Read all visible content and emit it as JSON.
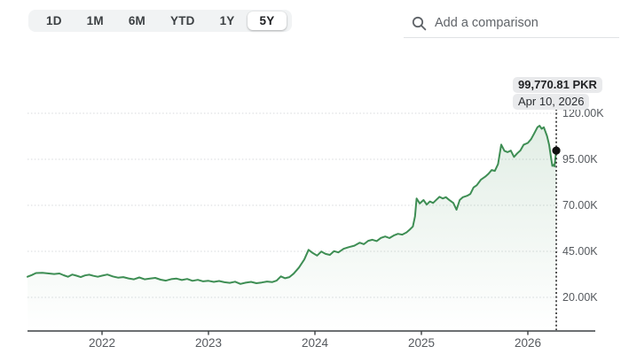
{
  "toolbar": {
    "ranges": [
      "1D",
      "1M",
      "6M",
      "YTD",
      "1Y",
      "5Y"
    ],
    "selected": "5Y"
  },
  "comparison": {
    "placeholder": "Add a comparison"
  },
  "tooltip": {
    "value": "99,770.81 PKR",
    "date": "Apr 10, 2026"
  },
  "chart_data": {
    "type": "line",
    "title": "",
    "xlabel": "",
    "ylabel": "",
    "unit": "PKR",
    "value_scale": "thousands",
    "selected_range": "5Y",
    "grid": "dotted-horizontal",
    "line_color": "#3e8e54",
    "y_ticks": [
      {
        "label": "120.00K",
        "value": 120
      },
      {
        "label": "95.00K",
        "value": 95
      },
      {
        "label": "70.00K",
        "value": 70
      },
      {
        "label": "45.00K",
        "value": 45
      },
      {
        "label": "20.00K",
        "value": 20
      }
    ],
    "x_ticks": [
      {
        "label": "2022",
        "value": 2022
      },
      {
        "label": "2023",
        "value": 2023
      },
      {
        "label": "2024",
        "value": 2024
      },
      {
        "label": "2025",
        "value": 2025
      },
      {
        "label": "2026",
        "value": 2026
      }
    ],
    "x_range": [
      2021.3,
      2026.267
    ],
    "last_point": {
      "t": 2026.267,
      "value": 99.77081,
      "label": "99,770.81 PKR",
      "date": "Apr 10, 2026"
    },
    "points": [
      [
        2021.3,
        31.2
      ],
      [
        2021.34,
        32.1
      ],
      [
        2021.38,
        33.2
      ],
      [
        2021.44,
        33.3
      ],
      [
        2021.5,
        33.0
      ],
      [
        2021.55,
        32.7
      ],
      [
        2021.6,
        33.0
      ],
      [
        2021.64,
        32.0
      ],
      [
        2021.68,
        31.2
      ],
      [
        2021.72,
        32.4
      ],
      [
        2021.76,
        31.8
      ],
      [
        2021.8,
        31.0
      ],
      [
        2021.84,
        31.9
      ],
      [
        2021.88,
        32.3
      ],
      [
        2021.92,
        31.7
      ],
      [
        2021.96,
        31.2
      ],
      [
        2022.0,
        31.8
      ],
      [
        2022.05,
        32.4
      ],
      [
        2022.1,
        31.4
      ],
      [
        2022.15,
        30.7
      ],
      [
        2022.2,
        31.0
      ],
      [
        2022.25,
        30.3
      ],
      [
        2022.3,
        29.8
      ],
      [
        2022.35,
        30.8
      ],
      [
        2022.4,
        29.8
      ],
      [
        2022.45,
        30.2
      ],
      [
        2022.5,
        30.6
      ],
      [
        2022.55,
        29.6
      ],
      [
        2022.6,
        29.1
      ],
      [
        2022.65,
        29.9
      ],
      [
        2022.7,
        30.2
      ],
      [
        2022.75,
        29.4
      ],
      [
        2022.8,
        30.0
      ],
      [
        2022.85,
        29.0
      ],
      [
        2022.9,
        29.5
      ],
      [
        2022.95,
        28.7
      ],
      [
        2023.0,
        29.0
      ],
      [
        2023.05,
        28.4
      ],
      [
        2023.1,
        28.9
      ],
      [
        2023.15,
        28.2
      ],
      [
        2023.2,
        27.9
      ],
      [
        2023.25,
        28.5
      ],
      [
        2023.3,
        27.3
      ],
      [
        2023.35,
        28.0
      ],
      [
        2023.4,
        28.4
      ],
      [
        2023.45,
        27.7
      ],
      [
        2023.5,
        28.1
      ],
      [
        2023.55,
        28.6
      ],
      [
        2023.6,
        28.3
      ],
      [
        2023.64,
        29.1
      ],
      [
        2023.68,
        31.4
      ],
      [
        2023.72,
        30.4
      ],
      [
        2023.76,
        31.0
      ],
      [
        2023.8,
        32.9
      ],
      [
        2023.85,
        36.2
      ],
      [
        2023.9,
        40.6
      ],
      [
        2023.94,
        45.8
      ],
      [
        2023.98,
        44.1
      ],
      [
        2024.02,
        42.7
      ],
      [
        2024.06,
        44.9
      ],
      [
        2024.1,
        43.6
      ],
      [
        2024.14,
        43.1
      ],
      [
        2024.18,
        45.1
      ],
      [
        2024.22,
        44.4
      ],
      [
        2024.27,
        46.4
      ],
      [
        2024.32,
        47.3
      ],
      [
        2024.37,
        48.1
      ],
      [
        2024.42,
        49.7
      ],
      [
        2024.46,
        48.9
      ],
      [
        2024.5,
        50.7
      ],
      [
        2024.54,
        51.3
      ],
      [
        2024.58,
        50.6
      ],
      [
        2024.62,
        52.3
      ],
      [
        2024.66,
        53.1
      ],
      [
        2024.7,
        52.2
      ],
      [
        2024.74,
        53.6
      ],
      [
        2024.78,
        54.5
      ],
      [
        2024.82,
        54.1
      ],
      [
        2024.86,
        55.3
      ],
      [
        2024.89,
        56.8
      ],
      [
        2024.92,
        58.5
      ],
      [
        2024.94,
        64.0
      ],
      [
        2024.955,
        73.7
      ],
      [
        2024.985,
        71.0
      ],
      [
        2025.02,
        72.9
      ],
      [
        2025.05,
        70.4
      ],
      [
        2025.08,
        72.1
      ],
      [
        2025.11,
        71.3
      ],
      [
        2025.14,
        73.0
      ],
      [
        2025.17,
        74.6
      ],
      [
        2025.2,
        73.7
      ],
      [
        2025.23,
        74.4
      ],
      [
        2025.26,
        73.0
      ],
      [
        2025.3,
        71.3
      ],
      [
        2025.33,
        67.6
      ],
      [
        2025.36,
        72.9
      ],
      [
        2025.39,
        74.4
      ],
      [
        2025.43,
        75.2
      ],
      [
        2025.46,
        76.2
      ],
      [
        2025.49,
        79.7
      ],
      [
        2025.52,
        80.9
      ],
      [
        2025.56,
        84.0
      ],
      [
        2025.6,
        85.6
      ],
      [
        2025.63,
        87.1
      ],
      [
        2025.66,
        89.2
      ],
      [
        2025.69,
        88.7
      ],
      [
        2025.72,
        92.4
      ],
      [
        2025.75,
        103.0
      ],
      [
        2025.78,
        99.6
      ],
      [
        2025.81,
        98.9
      ],
      [
        2025.84,
        99.7
      ],
      [
        2025.87,
        96.3
      ],
      [
        2025.9,
        98.2
      ],
      [
        2025.93,
        99.8
      ],
      [
        2025.96,
        102.9
      ],
      [
        2026.0,
        103.9
      ],
      [
        2026.03,
        105.9
      ],
      [
        2026.06,
        109.1
      ],
      [
        2026.09,
        112.4
      ],
      [
        2026.11,
        113.2
      ],
      [
        2026.13,
        111.6
      ],
      [
        2026.15,
        112.4
      ],
      [
        2026.18,
        107.7
      ],
      [
        2026.2,
        102.9
      ],
      [
        2026.22,
        95.1
      ],
      [
        2026.23,
        91.4
      ],
      [
        2026.24,
        92.0
      ],
      [
        2026.25,
        91.2
      ],
      [
        2026.267,
        99.77081
      ]
    ]
  }
}
